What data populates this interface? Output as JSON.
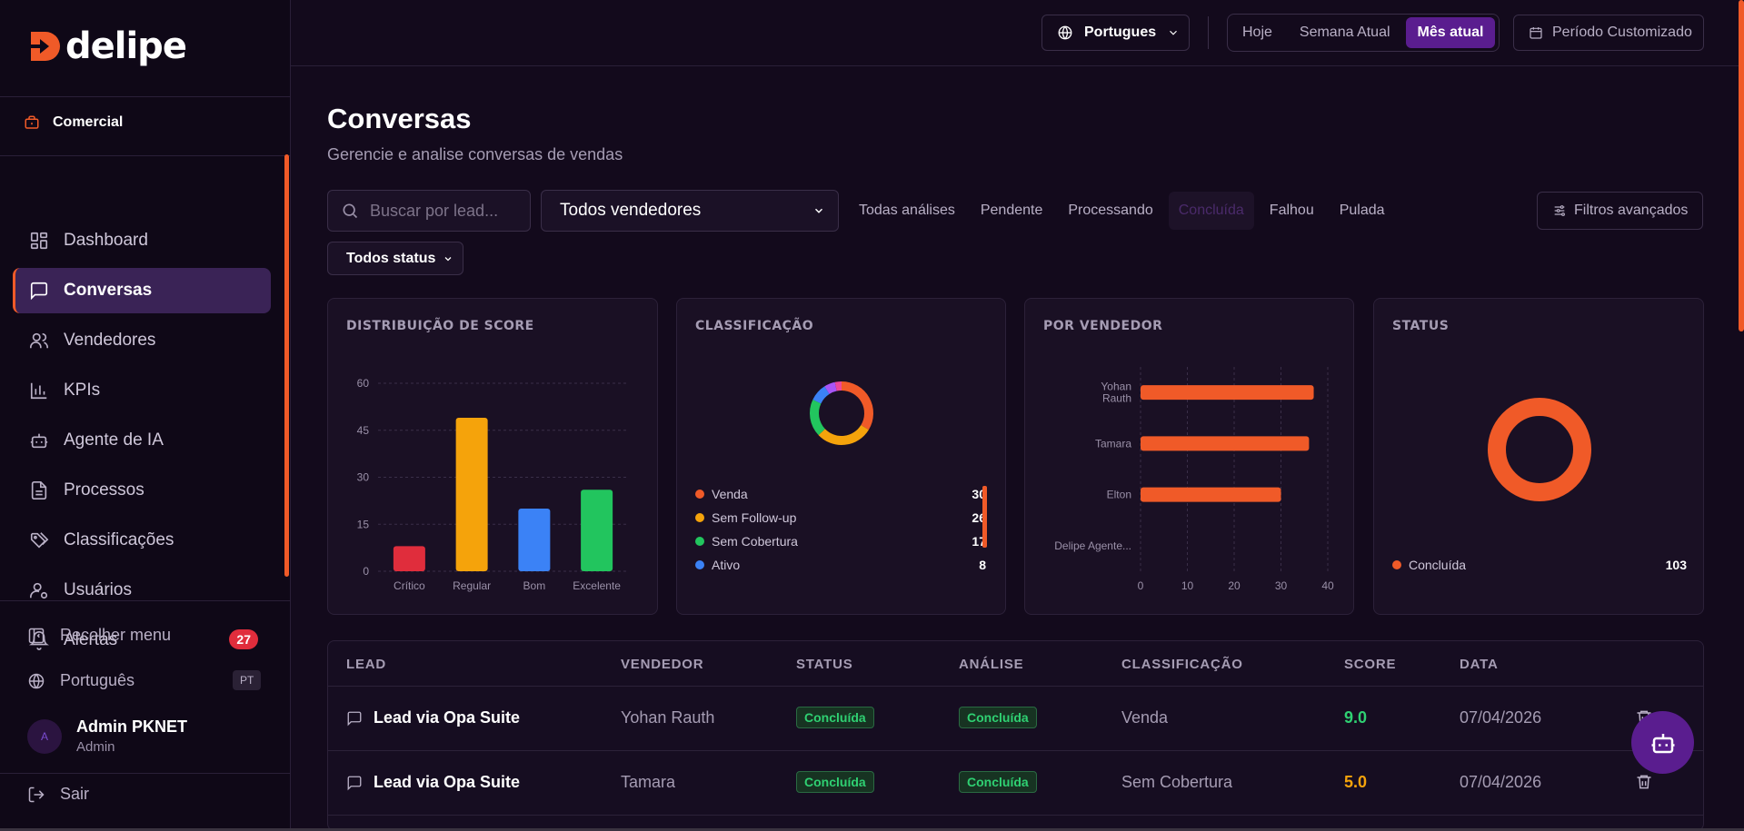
{
  "brand": {
    "name": "delipe",
    "accent": "#f05a28",
    "purple": "#5a1d8f"
  },
  "workspace": {
    "label": "Comercial",
    "icon": "briefcase-icon"
  },
  "nav": [
    {
      "label": "Dashboard",
      "icon": "grid-icon"
    },
    {
      "label": "Conversas",
      "icon": "chat-icon",
      "active": true
    },
    {
      "label": "Vendedores",
      "icon": "users-icon"
    },
    {
      "label": "KPIs",
      "icon": "bar-chart-icon"
    },
    {
      "label": "Agente de IA",
      "icon": "bot-icon"
    },
    {
      "label": "Processos",
      "icon": "document-icon"
    },
    {
      "label": "Classificações",
      "icon": "tags-icon"
    },
    {
      "label": "Usuários",
      "icon": "user-gear-icon"
    },
    {
      "label": "Alertas",
      "icon": "bell-icon",
      "badge": "27"
    }
  ],
  "sidebar_bottom": {
    "collapse": "Recolher menu",
    "language": "Português",
    "language_code": "PT",
    "user_initial": "A",
    "user_name": "Admin PKNET",
    "user_role": "Admin",
    "logout": "Sair"
  },
  "topbar": {
    "language": "Portugues",
    "periods": [
      "Hoje",
      "Semana Atual",
      "Mês atual"
    ],
    "active_period": "Mês atual",
    "custom_period": "Período Customizado"
  },
  "page": {
    "title": "Conversas",
    "subtitle": "Gerencie e analise conversas de vendas"
  },
  "toolbar": {
    "search_placeholder": "Buscar por lead...",
    "seller_select": "Todos vendedores",
    "analysis_filters": [
      "Todas análises",
      "Pendente",
      "Processando",
      "Concluída",
      "Falhou",
      "Pulada"
    ],
    "active_filter": "Concluída",
    "advanced": "Filtros avançados",
    "status_select": "Todos status"
  },
  "cards": {
    "score": {
      "title": "DISTRIBUIÇÃO DE SCORE"
    },
    "classification": {
      "title": "CLASSIFICAÇÃO"
    },
    "seller": {
      "title": "POR VENDEDOR"
    },
    "status": {
      "title": "STATUS"
    }
  },
  "chart_data": [
    {
      "type": "bar",
      "title": "DISTRIBUIÇÃO DE SCORE",
      "categories": [
        "Crítico",
        "Regular",
        "Bom",
        "Excelente"
      ],
      "values": [
        8,
        49,
        20,
        26
      ],
      "colors": [
        "#e02d3c",
        "#f5a30b",
        "#3b82f6",
        "#22c55e"
      ],
      "yticks": [
        0,
        15,
        30,
        45,
        60
      ],
      "ylim": [
        0,
        60
      ],
      "grid": true
    },
    {
      "type": "pie",
      "title": "CLASSIFICAÇÃO",
      "labels": [
        "Venda",
        "Sem Follow-up",
        "Sem Cobertura",
        "Ativo"
      ],
      "values": [
        30,
        26,
        17,
        8
      ],
      "colors": [
        "#f05a28",
        "#f5a30b",
        "#22c55e",
        "#3b82f6"
      ],
      "extra_slices_colors": [
        "#a855f7",
        "#ec4899"
      ],
      "extra_slices_values": [
        5,
        3
      ]
    },
    {
      "type": "bar",
      "orientation": "horizontal",
      "title": "POR VENDEDOR",
      "categories": [
        "Yohan Rauth",
        "Tamara",
        "Elton",
        "Delipe Agente..."
      ],
      "values": [
        37,
        36,
        30,
        0
      ],
      "xticks": [
        0,
        10,
        20,
        30,
        40
      ],
      "xlim": [
        0,
        40
      ],
      "color": "#f05a28",
      "grid": true
    },
    {
      "type": "pie",
      "title": "STATUS",
      "labels": [
        "Concluída"
      ],
      "values": [
        103
      ],
      "colors": [
        "#f05a28"
      ]
    }
  ],
  "table": {
    "headers": [
      "LEAD",
      "VENDEDOR",
      "STATUS",
      "ANÁLISE",
      "CLASSIFICAÇÃO",
      "SCORE",
      "DATA"
    ],
    "rows": [
      {
        "lead": "Lead via Opa Suite",
        "seller": "Yohan Rauth",
        "status": "Concluída",
        "analysis": "Concluída",
        "classification": "Venda",
        "score": "9.0",
        "score_color": "#2fd072",
        "date": "07/04/2026"
      },
      {
        "lead": "Lead via Opa Suite",
        "seller": "Tamara",
        "status": "Concluída",
        "analysis": "Concluída",
        "classification": "Sem Cobertura",
        "score": "5.0",
        "score_color": "#f5a30b",
        "date": "07/04/2026"
      }
    ]
  }
}
